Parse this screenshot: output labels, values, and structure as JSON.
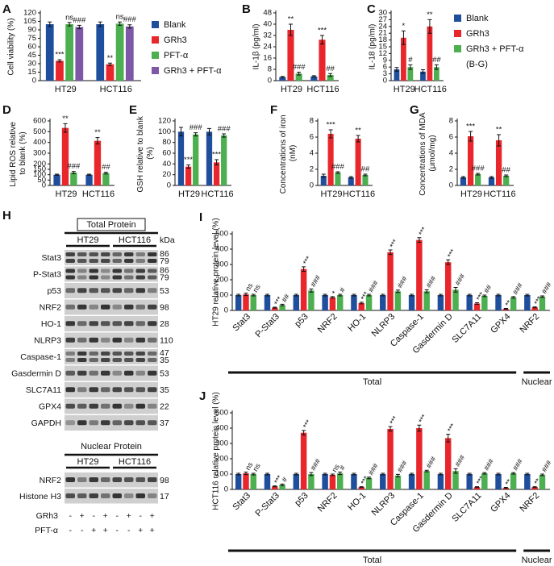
{
  "chart_data": [
    {
      "type": "bar",
      "label": "A",
      "ylabel": "Cell viability (%)",
      "categories": [
        "HT29",
        "HCT116"
      ],
      "ylim": [
        0,
        120
      ],
      "yticks": [
        0,
        15,
        30,
        45,
        60,
        75,
        90,
        105,
        120
      ],
      "legend": true,
      "series": [
        {
          "name": "Blank",
          "color": "#1f4e9c",
          "values": [
            100,
            100
          ],
          "errors": [
            4,
            4
          ]
        },
        {
          "name": "GRh3",
          "color": "#e8262b",
          "values": [
            35,
            29
          ],
          "errors": [
            2,
            2
          ],
          "annotations": [
            "***",
            "**"
          ]
        },
        {
          "name": "PFT-α",
          "color": "#4caf50",
          "values": [
            100,
            101
          ],
          "errors": [
            3,
            3
          ],
          "annotations": [
            "ns",
            "ns"
          ]
        },
        {
          "name": "GRh3 + PFT-α",
          "color": "#7e57a6",
          "values": [
            95,
            96
          ],
          "errors": [
            3,
            3
          ],
          "annotations": [
            "###",
            "###"
          ]
        }
      ]
    },
    {
      "type": "bar",
      "label": "B",
      "ylabel": "IL-1β (pg/ml)",
      "categories": [
        "HT29",
        "HCT116"
      ],
      "ylim": [
        0,
        48
      ],
      "yticks": [
        0,
        8,
        16,
        24,
        32,
        40,
        48
      ],
      "series": [
        {
          "color": "#1f4e9c",
          "values": [
            2.5,
            3
          ],
          "errors": [
            0.5,
            0.5
          ]
        },
        {
          "color": "#e8262b",
          "values": [
            36,
            29
          ],
          "errors": [
            4,
            3
          ],
          "annotations": [
            "**",
            "***"
          ]
        },
        {
          "color": "#4caf50",
          "values": [
            5,
            4
          ],
          "errors": [
            1,
            1
          ],
          "annotations": [
            "###",
            "##"
          ]
        }
      ]
    },
    {
      "type": "bar",
      "label": "C",
      "ylabel": "IL-18 (pg/ml)",
      "categories": [
        "HT29",
        "HCT116"
      ],
      "ylim": [
        0,
        30
      ],
      "yticks": [
        0,
        3,
        6,
        9,
        12,
        15,
        18,
        21,
        24,
        27,
        30
      ],
      "legend": true,
      "legend_note": "(B-G)",
      "series": [
        {
          "name": "Blank",
          "color": "#1f4e9c",
          "values": [
            5,
            4
          ],
          "errors": [
            0.8,
            0.8
          ]
        },
        {
          "name": "GRh3",
          "color": "#e8262b",
          "values": [
            19,
            24
          ],
          "errors": [
            3,
            3
          ],
          "annotations": [
            "*",
            "**"
          ]
        },
        {
          "name": "GRh3 + PFT-α",
          "color": "#4caf50",
          "values": [
            6,
            6
          ],
          "errors": [
            1,
            1
          ],
          "annotations": [
            "#",
            "##"
          ]
        }
      ]
    },
    {
      "type": "bar",
      "label": "D",
      "ylabel": "Lipid ROS relative to blank (%)",
      "categories": [
        "HT29",
        "HCT116"
      ],
      "ylim": [
        0,
        600
      ],
      "yticks": [
        0,
        50,
        100,
        150,
        200,
        300,
        400,
        500,
        600
      ],
      "series": [
        {
          "color": "#1f4e9c",
          "values": [
            100,
            100
          ],
          "errors": [
            5,
            5
          ]
        },
        {
          "color": "#e8262b",
          "values": [
            535,
            415
          ],
          "errors": [
            40,
            30
          ],
          "annotations": [
            "**",
            "**"
          ]
        },
        {
          "color": "#4caf50",
          "values": [
            120,
            115
          ],
          "errors": [
            10,
            8
          ],
          "annotations": [
            "###",
            "##"
          ]
        }
      ]
    },
    {
      "type": "bar",
      "label": "E",
      "ylabel": "GSH relative to blank (%)",
      "categories": [
        "HT29",
        "HCT116"
      ],
      "ylim": [
        0,
        120
      ],
      "yticks": [
        0,
        20,
        40,
        60,
        80,
        100,
        120
      ],
      "series": [
        {
          "color": "#1f4e9c",
          "values": [
            100,
            100
          ],
          "errors": [
            8,
            6
          ]
        },
        {
          "color": "#e8262b",
          "values": [
            35,
            43
          ],
          "errors": [
            3,
            5
          ],
          "annotations": [
            "***",
            "***"
          ]
        },
        {
          "color": "#4caf50",
          "values": [
            95,
            93
          ],
          "errors": [
            3,
            3
          ],
          "annotations": [
            "###",
            "###"
          ]
        }
      ]
    },
    {
      "type": "bar",
      "label": "F",
      "ylabel": "Concentrations of iron (nM)",
      "categories": [
        "HT29",
        "HCT116"
      ],
      "ylim": [
        0,
        8
      ],
      "yticks": [
        0,
        2,
        4,
        6,
        8
      ],
      "series": [
        {
          "color": "#1f4e9c",
          "values": [
            1.2,
            1
          ],
          "errors": [
            0.2,
            0.1
          ]
        },
        {
          "color": "#e8262b",
          "values": [
            6.4,
            5.8
          ],
          "errors": [
            0.5,
            0.4
          ],
          "annotations": [
            "***",
            "**"
          ]
        },
        {
          "color": "#4caf50",
          "values": [
            1.6,
            1.3
          ],
          "errors": [
            0.1,
            0.1
          ],
          "annotations": [
            "###",
            "##"
          ]
        }
      ]
    },
    {
      "type": "bar",
      "label": "G",
      "ylabel": "Concentrations of MDA (μmol/mg)",
      "categories": [
        "HT29",
        "HCT116"
      ],
      "ylim": [
        0,
        8
      ],
      "yticks": [
        0,
        2,
        4,
        6,
        8
      ],
      "series": [
        {
          "color": "#1f4e9c",
          "values": [
            1,
            1
          ],
          "errors": [
            0.1,
            0.1
          ]
        },
        {
          "color": "#e8262b",
          "values": [
            6.1,
            5.6
          ],
          "errors": [
            0.6,
            0.7
          ],
          "annotations": [
            "***",
            "**"
          ]
        },
        {
          "color": "#4caf50",
          "values": [
            1.4,
            1.2
          ],
          "errors": [
            0.1,
            0.1
          ],
          "annotations": [
            "###",
            "##"
          ]
        }
      ]
    },
    {
      "type": "bar",
      "label": "I",
      "ylabel": "HT29 relative protein level (%)",
      "categories": [
        "Stat3",
        "P-Stat3",
        "p53",
        "NRF2",
        "HO-1",
        "NLRP3",
        "Caspase-1",
        "Gasdermin D",
        "SLC7A11",
        "GPX4",
        "NRF2"
      ],
      "ylim": [
        0,
        500
      ],
      "yticks": [
        0,
        100,
        200,
        300,
        400,
        500
      ],
      "group_labels": [
        "Total",
        "Nuclear"
      ],
      "series": [
        {
          "color": "#1f4e9c",
          "values": [
            100,
            100,
            100,
            100,
            100,
            100,
            100,
            100,
            100,
            100,
            100
          ],
          "errors": [
            5,
            5,
            5,
            5,
            5,
            5,
            5,
            5,
            5,
            5,
            5
          ]
        },
        {
          "color": "#e8262b",
          "values": [
            105,
            18,
            270,
            85,
            48,
            380,
            460,
            315,
            45,
            10,
            20
          ],
          "errors": [
            8,
            3,
            15,
            5,
            5,
            15,
            15,
            15,
            5,
            3,
            3
          ],
          "annotations": [
            "ns",
            "***",
            "***",
            "*",
            "***",
            "***",
            "***",
            "***",
            "***",
            "**",
            "***"
          ]
        },
        {
          "color": "#4caf50",
          "values": [
            100,
            35,
            130,
            100,
            100,
            125,
            125,
            135,
            95,
            85,
            90
          ],
          "errors": [
            5,
            5,
            10,
            5,
            5,
            8,
            10,
            15,
            5,
            5,
            5
          ],
          "annotations": [
            "ns",
            "##",
            "###",
            "#",
            "###",
            "###",
            "###",
            "###",
            "##",
            "###",
            "###"
          ]
        }
      ]
    },
    {
      "type": "bar",
      "label": "J",
      "ylabel": "HCT116 relative protein level (%)",
      "categories": [
        "Stat3",
        "P-Stat3",
        "p53",
        "NRF2",
        "HO-1",
        "NLRP3",
        "Caspase-1",
        "Gasdermin D",
        "SLC7A11",
        "GPX4",
        "NRF2"
      ],
      "ylim": [
        0,
        500
      ],
      "yticks": [
        0,
        100,
        200,
        300,
        400,
        500
      ],
      "group_labels": [
        "Total",
        "Nuclear"
      ],
      "series": [
        {
          "color": "#1f4e9c",
          "values": [
            100,
            100,
            100,
            100,
            100,
            100,
            100,
            100,
            100,
            100,
            100
          ],
          "errors": [
            5,
            5,
            5,
            5,
            5,
            5,
            5,
            5,
            5,
            5,
            5
          ]
        },
        {
          "color": "#e8262b",
          "values": [
            105,
            20,
            370,
            95,
            15,
            395,
            400,
            335,
            15,
            10,
            15
          ],
          "errors": [
            8,
            3,
            15,
            5,
            3,
            15,
            20,
            25,
            3,
            3,
            3
          ],
          "annotations": [
            "ns",
            "***",
            "***",
            "ns",
            "***",
            "***",
            "***",
            "***",
            "***",
            "**",
            "**"
          ]
        },
        {
          "color": "#4caf50",
          "values": [
            100,
            30,
            100,
            105,
            75,
            90,
            120,
            120,
            105,
            105,
            95
          ],
          "errors": [
            5,
            5,
            10,
            8,
            5,
            8,
            5,
            15,
            5,
            5,
            5
          ],
          "annotations": [
            "ns",
            "#",
            "###",
            "#",
            "###",
            "###",
            "###",
            "###",
            "###",
            "###",
            "###"
          ]
        }
      ]
    }
  ],
  "blot": {
    "label": "H",
    "total_title": "Total Protein",
    "nuclear_title": "Nuclear Protein",
    "cell_lines": [
      "HT29",
      "HCT116"
    ],
    "kda_header": "kDa",
    "rows": [
      {
        "name": "Stat3",
        "kda": [
          86,
          79
        ]
      },
      {
        "name": "P-Stat3",
        "kda": [
          86,
          79
        ]
      },
      {
        "name": "p53",
        "kda": [
          53
        ]
      },
      {
        "name": "NRF2",
        "kda": [
          98
        ]
      },
      {
        "name": "HO-1",
        "kda": [
          28
        ]
      },
      {
        "name": "NLRP3",
        "kda": [
          110
        ]
      },
      {
        "name": "Caspase-1",
        "kda": [
          47,
          35
        ]
      },
      {
        "name": "Gasdermin D",
        "kda": [
          53
        ]
      },
      {
        "name": "SLC7A11",
        "kda": [
          35
        ]
      },
      {
        "name": "GPX4",
        "kda": [
          22
        ]
      },
      {
        "name": "GAPDH",
        "kda": [
          37
        ]
      }
    ],
    "nuclear_rows": [
      {
        "name": "NRF2",
        "kda": [
          98
        ]
      },
      {
        "name": "Histone H3",
        "kda": [
          17
        ]
      }
    ],
    "treatments": [
      {
        "name": "GRh3",
        "signs": [
          "-",
          "+",
          "-",
          "+",
          "-",
          "+",
          "-",
          "+"
        ]
      },
      {
        "name": "PFT-α",
        "signs": [
          "-",
          "-",
          "+",
          "+",
          "-",
          "-",
          "+",
          "+"
        ]
      }
    ]
  }
}
